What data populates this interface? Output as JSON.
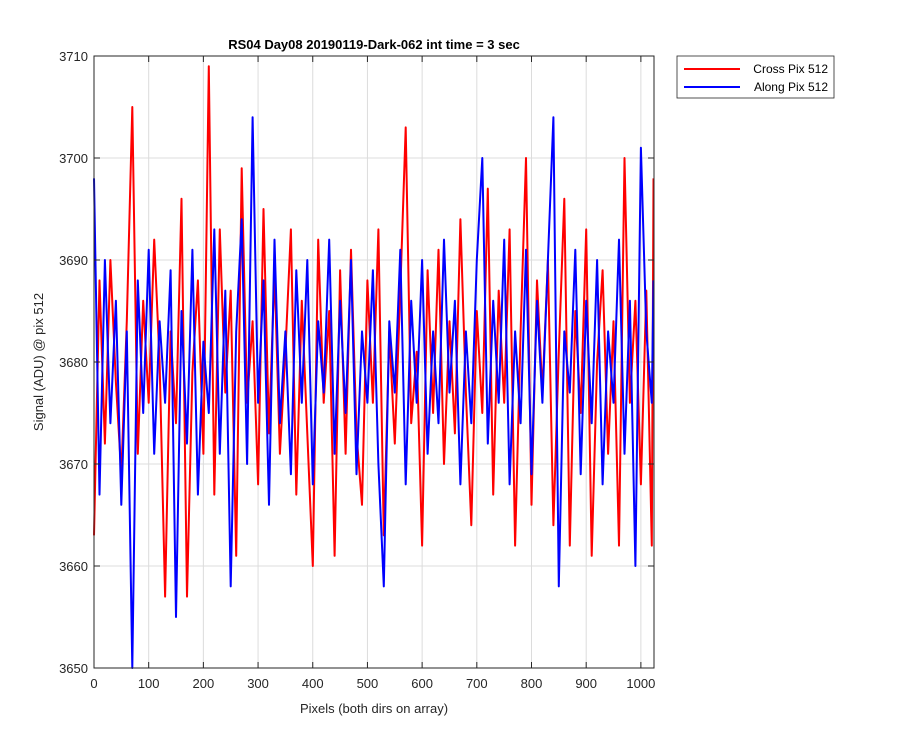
{
  "chart_data": {
    "type": "line",
    "title": "RS04 Day08 20190119-Dark-062 int time = 3 sec",
    "xlabel": "Pixels (both dirs on array)",
    "ylabel": "Signal (ADU) @ pix 512",
    "xlim": [
      0,
      1024
    ],
    "ylim": [
      3650,
      3710
    ],
    "xticks": [
      0,
      100,
      200,
      300,
      400,
      500,
      600,
      700,
      800,
      900,
      1000
    ],
    "yticks": [
      3650,
      3660,
      3670,
      3680,
      3690,
      3700,
      3710
    ],
    "grid": true,
    "legend_location": "outside-top-right",
    "series": [
      {
        "name": "Cross Pix 512",
        "color": "#ff0000",
        "x": [
          0,
          10,
          20,
          30,
          40,
          50,
          60,
          70,
          80,
          90,
          100,
          110,
          120,
          130,
          140,
          150,
          160,
          170,
          180,
          190,
          200,
          210,
          220,
          230,
          240,
          250,
          260,
          270,
          280,
          290,
          300,
          310,
          320,
          330,
          340,
          350,
          360,
          370,
          380,
          390,
          400,
          410,
          420,
          430,
          440,
          450,
          460,
          470,
          480,
          490,
          500,
          510,
          520,
          530,
          540,
          550,
          560,
          570,
          580,
          590,
          600,
          610,
          620,
          630,
          640,
          650,
          660,
          670,
          680,
          690,
          700,
          710,
          720,
          730,
          740,
          750,
          760,
          770,
          780,
          790,
          800,
          810,
          820,
          830,
          840,
          850,
          860,
          870,
          880,
          890,
          900,
          910,
          920,
          930,
          940,
          950,
          960,
          970,
          980,
          990,
          1000,
          1010,
          1020,
          1023
        ],
        "y": [
          3663,
          3688,
          3672,
          3690,
          3678,
          3669,
          3684,
          3705,
          3671,
          3686,
          3676,
          3692,
          3680,
          3657,
          3683,
          3674,
          3696,
          3657,
          3679,
          3688,
          3671,
          3709,
          3667,
          3693,
          3677,
          3687,
          3661,
          3699,
          3676,
          3684,
          3668,
          3695,
          3673,
          3689,
          3671,
          3681,
          3693,
          3667,
          3686,
          3673,
          3660,
          3692,
          3676,
          3685,
          3661,
          3689,
          3671,
          3691,
          3673,
          3666,
          3688,
          3676,
          3693,
          3663,
          3683,
          3672,
          3687,
          3703,
          3674,
          3681,
          3662,
          3689,
          3675,
          3691,
          3670,
          3684,
          3673,
          3694,
          3677,
          3664,
          3685,
          3675,
          3697,
          3667,
          3687,
          3676,
          3693,
          3662,
          3683,
          3700,
          3666,
          3688,
          3677,
          3690,
          3664,
          3681,
          3696,
          3662,
          3685,
          3675,
          3693,
          3661,
          3680,
          3689,
          3671,
          3684,
          3662,
          3700,
          3676,
          3686,
          3668,
          3687,
          3662,
          3698
        ]
      },
      {
        "name": "Along Pix 512",
        "color": "#0000ff",
        "x": [
          0,
          10,
          20,
          30,
          40,
          50,
          60,
          70,
          80,
          90,
          100,
          110,
          120,
          130,
          140,
          150,
          160,
          170,
          180,
          190,
          200,
          210,
          220,
          230,
          240,
          250,
          260,
          270,
          280,
          290,
          300,
          310,
          320,
          330,
          340,
          350,
          360,
          370,
          380,
          390,
          400,
          410,
          420,
          430,
          440,
          450,
          460,
          470,
          480,
          490,
          500,
          510,
          520,
          530,
          540,
          550,
          560,
          570,
          580,
          590,
          600,
          610,
          620,
          630,
          640,
          650,
          660,
          670,
          680,
          690,
          700,
          710,
          720,
          730,
          740,
          750,
          760,
          770,
          780,
          790,
          800,
          810,
          820,
          830,
          840,
          850,
          860,
          870,
          880,
          890,
          900,
          910,
          920,
          930,
          940,
          950,
          960,
          970,
          980,
          990,
          1000,
          1010,
          1020,
          1023
        ],
        "y": [
          3698,
          3667,
          3690,
          3674,
          3686,
          3666,
          3683,
          3650,
          3688,
          3675,
          3691,
          3671,
          3684,
          3676,
          3689,
          3655,
          3685,
          3672,
          3691,
          3667,
          3682,
          3675,
          3693,
          3671,
          3687,
          3658,
          3683,
          3694,
          3670,
          3704,
          3676,
          3688,
          3666,
          3692,
          3674,
          3683,
          3669,
          3689,
          3676,
          3690,
          3668,
          3684,
          3677,
          3692,
          3671,
          3686,
          3675,
          3690,
          3669,
          3683,
          3676,
          3689,
          3670,
          3658,
          3684,
          3677,
          3691,
          3668,
          3686,
          3676,
          3690,
          3671,
          3683,
          3674,
          3692,
          3677,
          3686,
          3668,
          3683,
          3674,
          3690,
          3700,
          3672,
          3686,
          3676,
          3692,
          3668,
          3683,
          3674,
          3691,
          3669,
          3686,
          3676,
          3690,
          3704,
          3658,
          3683,
          3677,
          3691,
          3669,
          3686,
          3674,
          3690,
          3668,
          3683,
          3676,
          3692,
          3671,
          3686,
          3660,
          3701,
          3683,
          3676,
          3688
        ]
      }
    ]
  }
}
